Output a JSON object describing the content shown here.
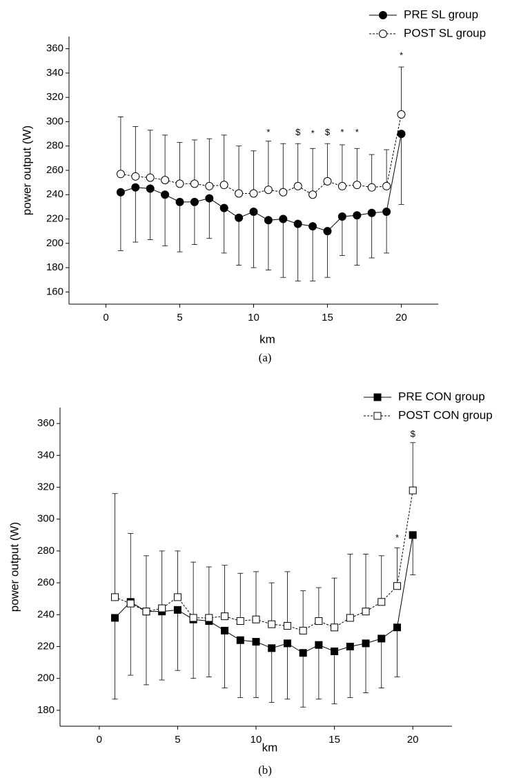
{
  "chart_data": [
    {
      "type": "line",
      "caption": "(a)",
      "xlabel": "km",
      "ylabel": "power output (W)",
      "xlim": [
        -2.5,
        22.5
      ],
      "xticks": [
        0,
        5,
        10,
        15,
        20
      ],
      "ylim": [
        150,
        370
      ],
      "yticks": [
        160,
        180,
        200,
        220,
        240,
        260,
        280,
        300,
        320,
        340,
        360
      ],
      "legend": "top-right",
      "x": [
        1,
        2,
        3,
        4,
        5,
        6,
        7,
        8,
        9,
        10,
        11,
        12,
        13,
        14,
        15,
        16,
        17,
        18,
        19,
        20
      ],
      "series": [
        {
          "name": "PRE SL group",
          "color": "#000000",
          "marker": "circle",
          "filled": true,
          "line_style": "solid",
          "error_direction": "down",
          "values": [
            242,
            246,
            245,
            240,
            234,
            234,
            237,
            229,
            221,
            226,
            219,
            220,
            216,
            214,
            210,
            222,
            223,
            225,
            226,
            290
          ],
          "errors": [
            48,
            45,
            42,
            42,
            41,
            35,
            33,
            37,
            39,
            46,
            41,
            48,
            47,
            45,
            38,
            32,
            41,
            37,
            34,
            58
          ]
        },
        {
          "name": "POST SL group",
          "color": "#000000",
          "marker": "circle",
          "filled": false,
          "line_style": "dashed",
          "error_direction": "up",
          "values": [
            257,
            255,
            254,
            252,
            249,
            249,
            247,
            248,
            241,
            241,
            244,
            242,
            247,
            240,
            251,
            247,
            248,
            246,
            247,
            306
          ],
          "errors": [
            47,
            41,
            39,
            37,
            34,
            36,
            39,
            41,
            39,
            35,
            40,
            40,
            35,
            38,
            31,
            34,
            30,
            27,
            30,
            39
          ]
        }
      ],
      "annotations": [
        {
          "text": "*",
          "x": 11,
          "y": 291
        },
        {
          "text": "$",
          "x": 13,
          "y": 291
        },
        {
          "text": "*",
          "x": 14,
          "y": 290
        },
        {
          "text": "$",
          "x": 15,
          "y": 291
        },
        {
          "text": "*",
          "x": 16,
          "y": 291
        },
        {
          "text": "*",
          "x": 17,
          "y": 291
        },
        {
          "text": "*",
          "x": 20,
          "y": 354
        }
      ]
    },
    {
      "type": "line",
      "caption": "(b)",
      "xlabel": "km",
      "ylabel": "power output (W)",
      "xlim": [
        -2.5,
        22.5
      ],
      "xticks": [
        0,
        5,
        10,
        15,
        20
      ],
      "ylim": [
        170,
        370
      ],
      "yticks": [
        180,
        200,
        220,
        240,
        260,
        280,
        300,
        320,
        340,
        360
      ],
      "legend": "top-right",
      "x": [
        1,
        2,
        3,
        4,
        5,
        6,
        7,
        8,
        9,
        10,
        11,
        12,
        13,
        14,
        15,
        16,
        17,
        18,
        19,
        20
      ],
      "series": [
        {
          "name": "PRE CON group",
          "color": "#000000",
          "marker": "square",
          "filled": true,
          "line_style": "solid",
          "error_direction": "down",
          "values": [
            238,
            248,
            242,
            242,
            243,
            237,
            236,
            230,
            224,
            223,
            219,
            222,
            216,
            221,
            217,
            220,
            222,
            225,
            232,
            290
          ],
          "errors": [
            51,
            46,
            46,
            43,
            38,
            37,
            35,
            36,
            36,
            35,
            34,
            35,
            34,
            34,
            33,
            32,
            31,
            31,
            31,
            25
          ]
        },
        {
          "name": "POST CON group",
          "color": "#000000",
          "marker": "square",
          "filled": false,
          "line_style": "dashed",
          "error_direction": "up",
          "values": [
            251,
            247,
            242,
            244,
            251,
            238,
            238,
            239,
            236,
            237,
            234,
            233,
            230,
            236,
            232,
            238,
            242,
            248,
            258,
            318
          ],
          "errors": [
            65,
            44,
            35,
            36,
            29,
            35,
            32,
            32,
            30,
            30,
            26,
            34,
            25,
            21,
            31,
            40,
            36,
            29,
            24,
            30
          ]
        }
      ],
      "annotations": [
        {
          "text": "*",
          "x": 19,
          "y": 288
        },
        {
          "text": "$",
          "x": 20,
          "y": 353
        }
      ]
    }
  ]
}
